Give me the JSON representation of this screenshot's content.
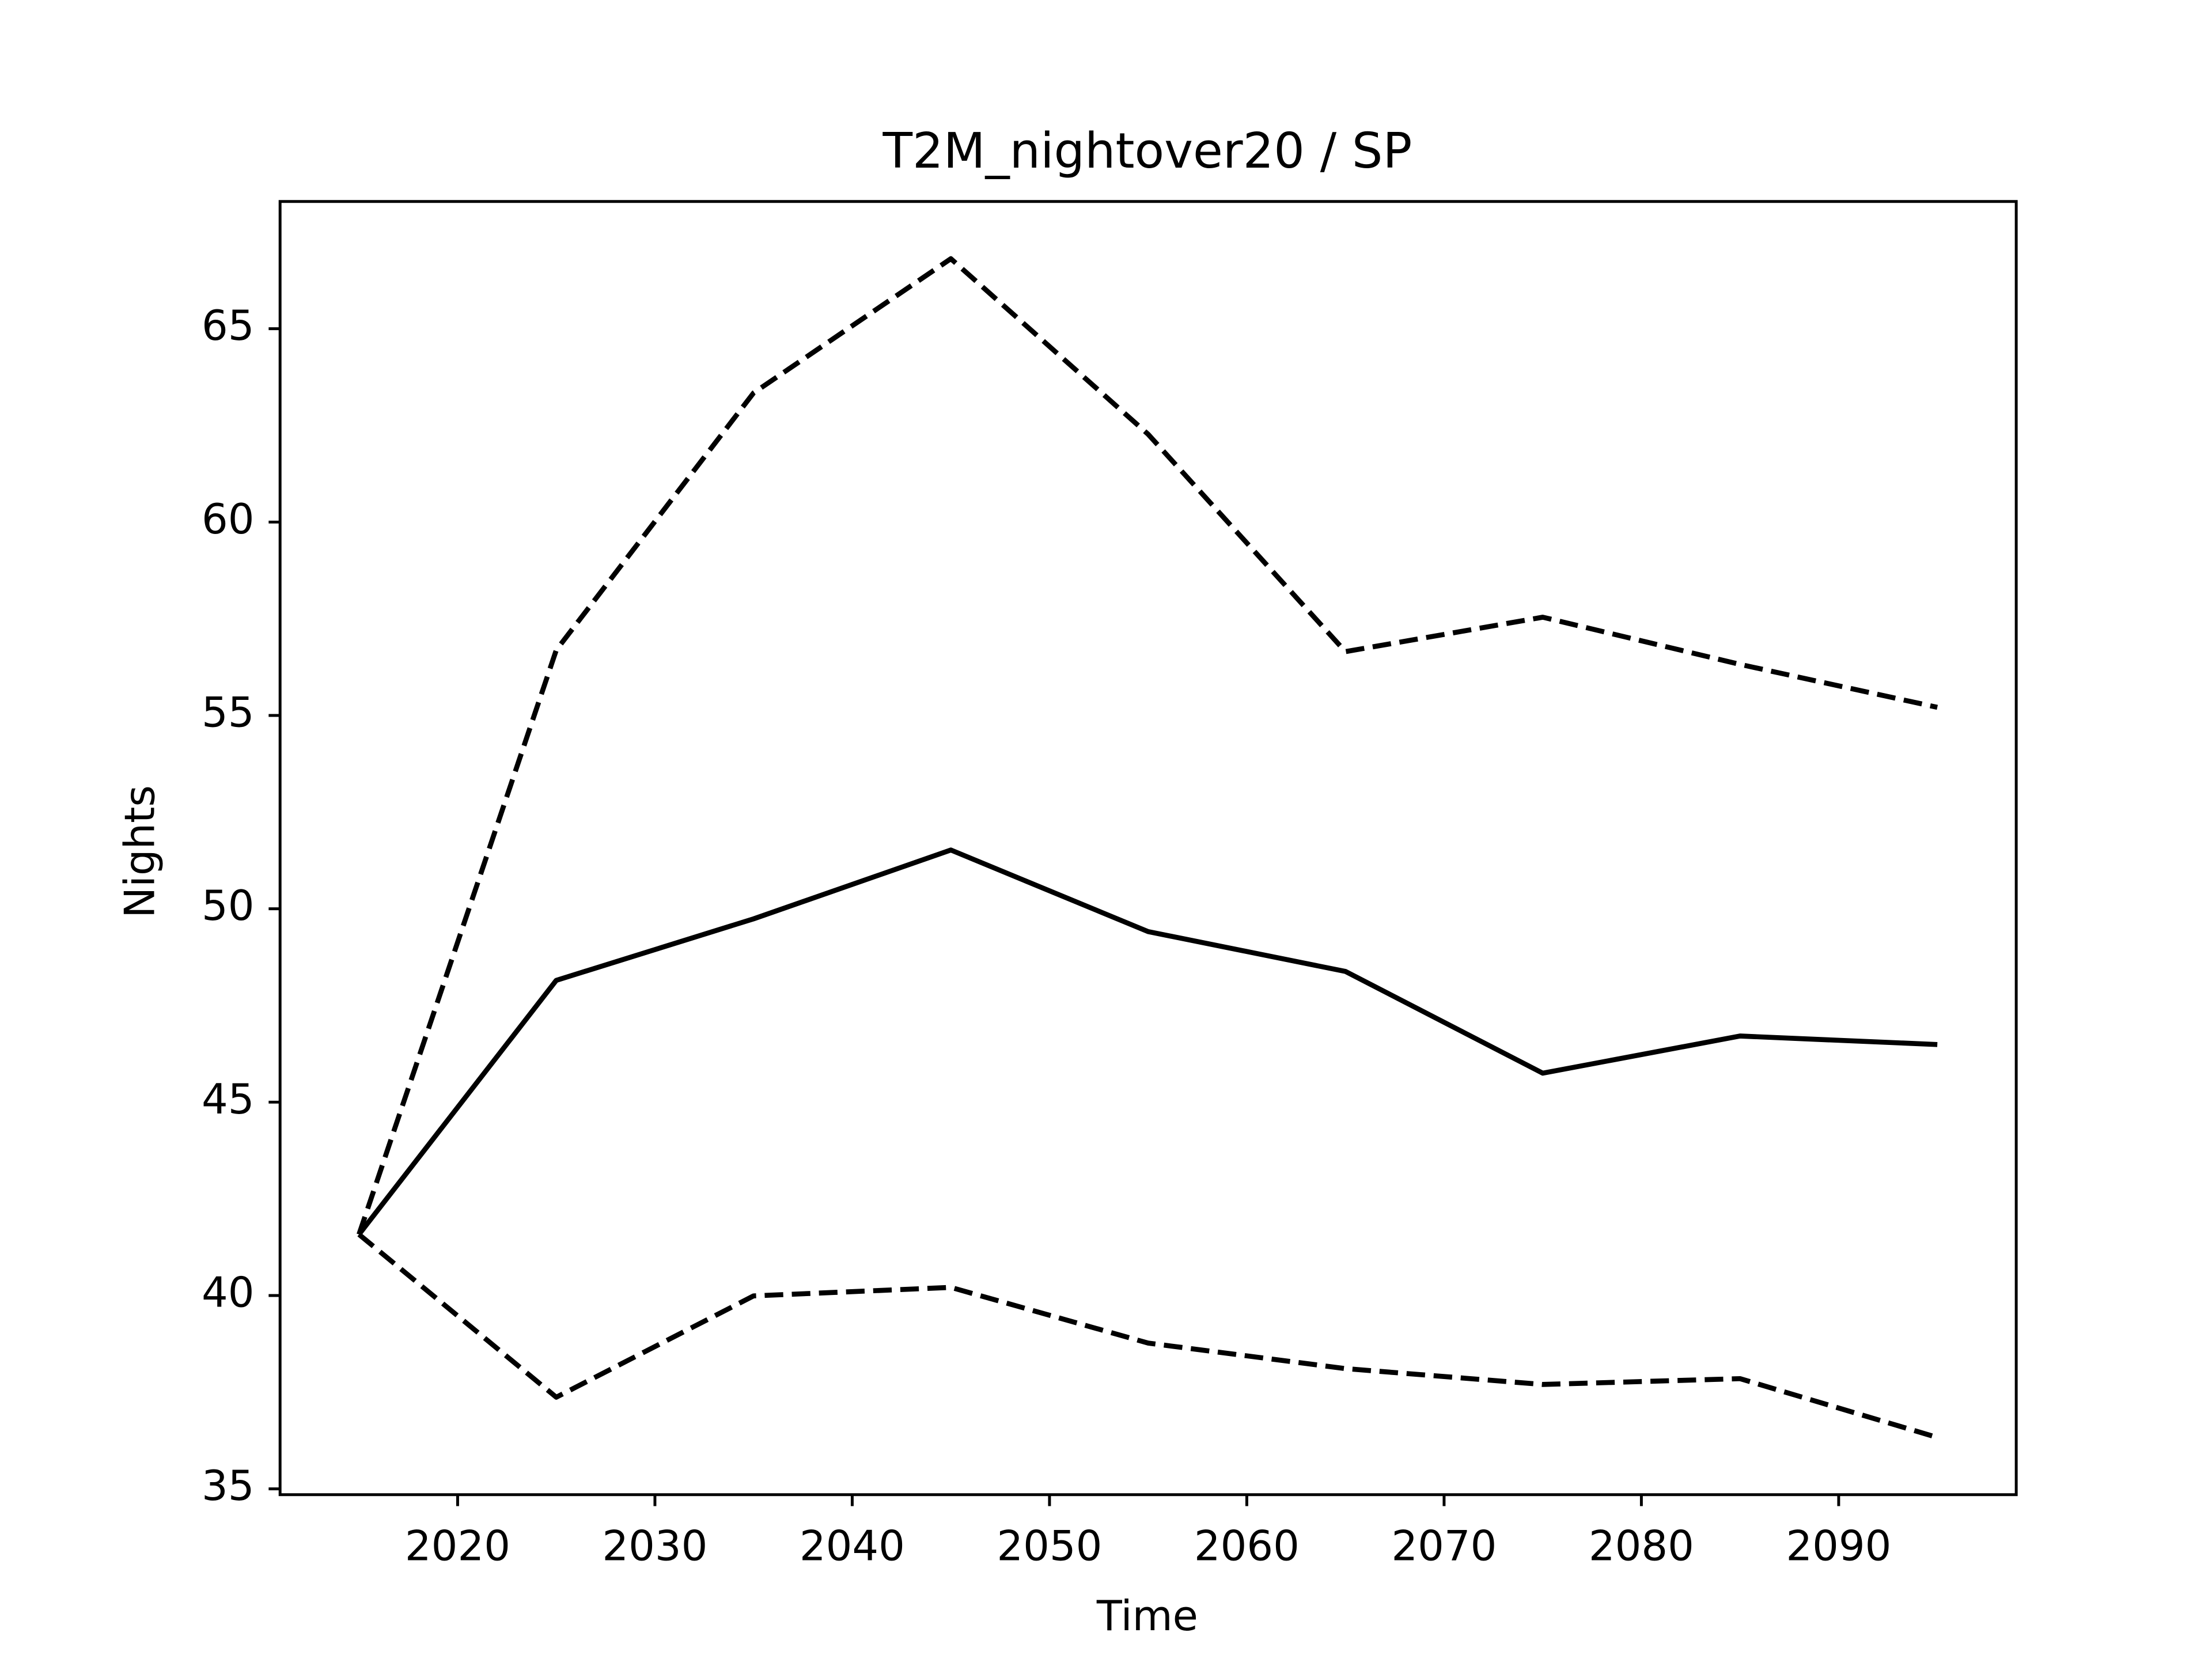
{
  "chart_data": {
    "type": "line",
    "title": "T2M_nightover20 / SP",
    "x_label": "Time",
    "y_label": "Nights",
    "x": [
      2015,
      2025,
      2035,
      2045,
      2055,
      2065,
      2075,
      2085,
      2095
    ],
    "series": [
      {
        "color": "#000000",
        "linestyle": "solid",
        "values": [
          41.58,
          48.15,
          49.74,
          51.52,
          49.41,
          48.38,
          45.75,
          46.71,
          46.49
        ]
      },
      {
        "color": "#000000",
        "linestyle": "dashed",
        "values": [
          41.58,
          56.69,
          63.34,
          66.81,
          62.27,
          56.65,
          57.54,
          56.32,
          55.21
        ]
      },
      {
        "color": "#000000",
        "linestyle": "dashed",
        "values": [
          41.58,
          37.37,
          39.99,
          40.21,
          38.77,
          38.11,
          37.7,
          37.85,
          36.33
        ]
      }
    ],
    "xlim": [
      2011,
      2099
    ],
    "ylim": [
      34.85,
      68.29
    ],
    "xticks": [
      2020,
      2030,
      2040,
      2050,
      2060,
      2070,
      2080,
      2090
    ],
    "yticks": [
      35,
      40,
      45,
      50,
      55,
      60,
      65
    ],
    "grid": false
  }
}
